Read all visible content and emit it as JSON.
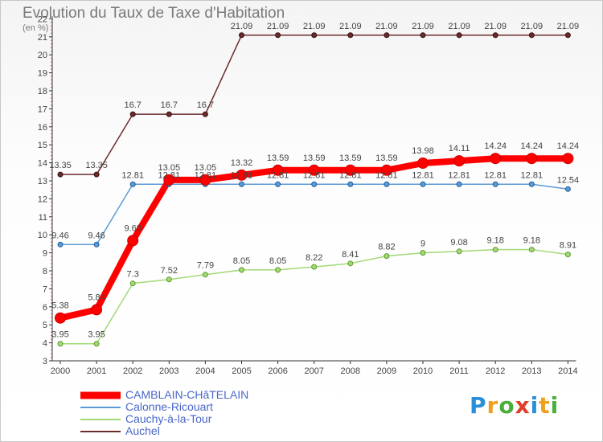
{
  "title": "Evolution du Taux de Taxe d'Habitation",
  "unit_label": "(en %)",
  "logo": {
    "text": "Proxiti",
    "letters": [
      {
        "char": "P",
        "color": "#2a8fd8"
      },
      {
        "char": "r",
        "color": "#f0a020"
      },
      {
        "char": "o",
        "color": "#4aae3a"
      },
      {
        "char": "x",
        "color": "#e0402a"
      },
      {
        "char": "i",
        "color": "#2a8fd8"
      },
      {
        "char": "t",
        "color": "#f0a020"
      },
      {
        "char": "i",
        "color": "#4aae3a"
      }
    ]
  },
  "chart_data": {
    "type": "line",
    "x": [
      "2000",
      "2001",
      "2002",
      "2003",
      "2004",
      "2005",
      "2006",
      "2007",
      "2008",
      "2009",
      "2010",
      "2011",
      "2012",
      "2013",
      "2014"
    ],
    "ylim": [
      3,
      22
    ],
    "yticks": [
      3,
      4,
      5,
      6,
      7,
      8,
      9,
      10,
      11,
      12,
      13,
      14,
      15,
      16,
      17,
      18,
      19,
      20,
      21,
      22
    ],
    "grid": false,
    "legend_position": "bottom-left",
    "series": [
      {
        "name": "CAMBLAIN-CHâTELAIN",
        "color": "#ff0000",
        "values": [
          5.38,
          5.84,
          9.68,
          13.05,
          13.05,
          13.32,
          13.59,
          13.59,
          13.59,
          13.59,
          13.98,
          14.11,
          14.24,
          14.24,
          14.24
        ],
        "labels": [
          "5.38",
          "5.84",
          "9.68",
          "13.05",
          "13.05",
          "13.32",
          "13.59",
          "13.59",
          "13.59",
          "13.59",
          "13.98",
          "14.11",
          "14.24",
          "14.24",
          "14.24"
        ]
      },
      {
        "name": "Calonne-Ricouart",
        "color": "#5b9bd5",
        "values": [
          9.46,
          9.46,
          12.81,
          12.81,
          12.81,
          12.81,
          12.81,
          12.81,
          12.81,
          12.81,
          12.81,
          12.81,
          12.81,
          12.81,
          12.54
        ],
        "labels": [
          "9.46",
          "9.46",
          "12.81",
          "12.81",
          "12.81",
          "12.81",
          "12.81",
          "12.81",
          "12.81",
          "12.81",
          "12.81",
          "12.81",
          "12.81",
          "12.81",
          "12.54"
        ]
      },
      {
        "name": "Cauchy-à-la-Tour",
        "color": "#a3d977",
        "values": [
          3.95,
          3.95,
          7.3,
          7.52,
          7.79,
          8.05,
          8.05,
          8.22,
          8.41,
          8.82,
          9,
          9.08,
          9.18,
          9.18,
          8.91
        ],
        "labels": [
          "3.95",
          "3.95",
          "7.3",
          "7.52",
          "7.79",
          "8.05",
          "8.05",
          "8.22",
          "8.41",
          "8.82",
          "9",
          "9.08",
          "9.18",
          "9.18",
          "8.91"
        ]
      },
      {
        "name": "Auchel",
        "color": "#6b2b2b",
        "values": [
          13.35,
          13.35,
          16.7,
          16.7,
          16.7,
          21.09,
          21.09,
          21.09,
          21.09,
          21.09,
          21.09,
          21.09,
          21.09,
          21.09,
          21.09
        ],
        "labels": [
          "13.35",
          "13.35",
          "16.7",
          "16.7",
          "16.7",
          "21.09",
          "21.09",
          "21.09",
          "21.09",
          "21.09",
          "21.09",
          "21.09",
          "21.09",
          "21.09",
          "21.09"
        ]
      }
    ]
  }
}
